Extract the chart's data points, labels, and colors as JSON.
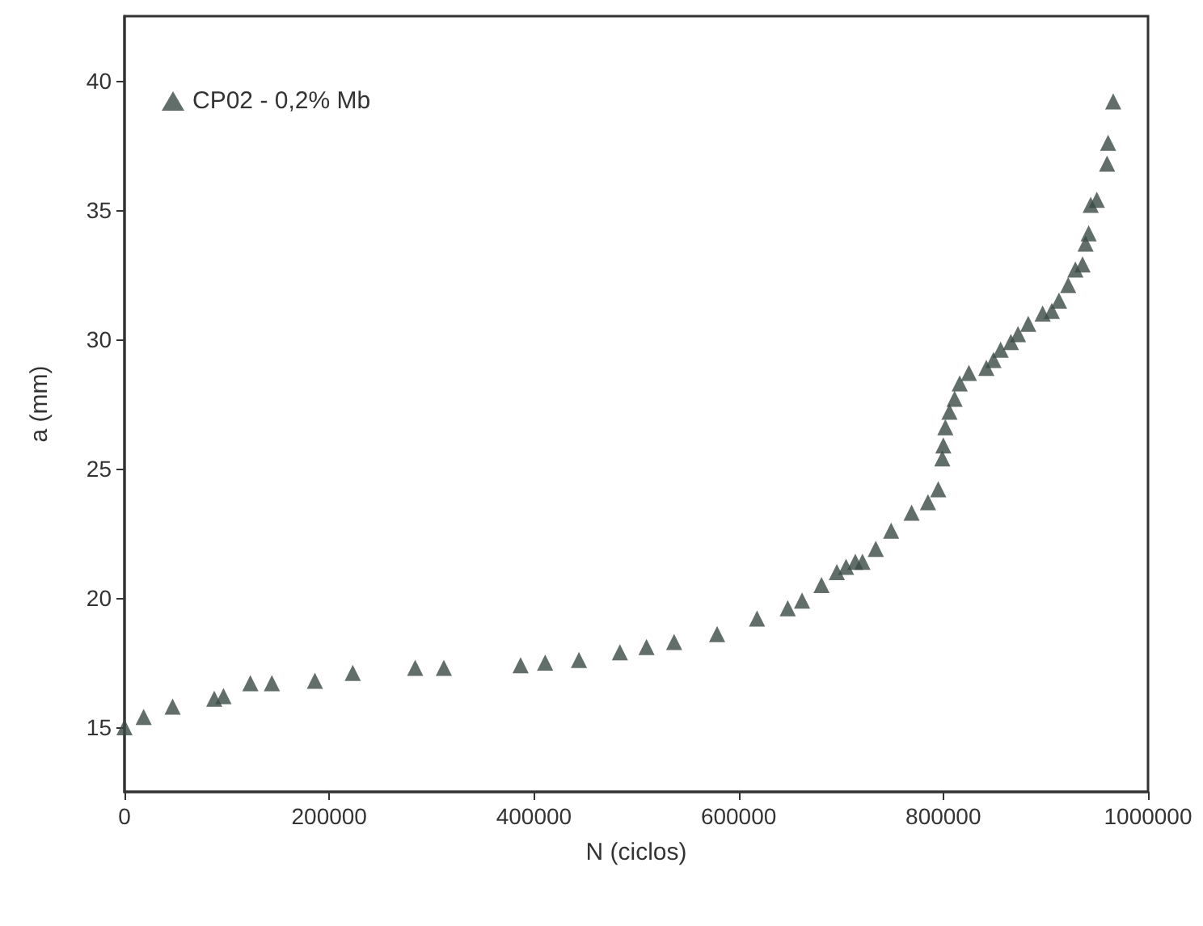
{
  "chart_data": {
    "type": "scatter",
    "xlabel": "N (ciclos)",
    "ylabel": "a (mm)",
    "xlim": [
      0,
      1000000
    ],
    "xticks": [
      0,
      200000,
      400000,
      600000,
      800000,
      1000000
    ],
    "ylim": [
      12.5,
      42.5
    ],
    "yticks": [
      15,
      20,
      25,
      30,
      35,
      40
    ],
    "grid": false,
    "legend": "top left",
    "marker": "triangle",
    "series": [
      {
        "name": "CP02 - 0,2% Mb",
        "color": "#3a4a45",
        "x": [
          0,
          18700,
          47000,
          87700,
          96700,
          123000,
          144000,
          186000,
          223000,
          284000,
          312000,
          387000,
          411000,
          444000,
          484000,
          510000,
          537000,
          579000,
          618000,
          648000,
          662000,
          681000,
          696000,
          705000,
          714000,
          721000,
          734000,
          749000,
          769000,
          785000,
          795000,
          799000,
          800000,
          802000,
          806000,
          811000,
          816000,
          825000,
          842000,
          849000,
          856000,
          866000,
          873000,
          883000,
          897000,
          906000,
          913000,
          922000,
          929000,
          936000,
          939000,
          942000,
          944000,
          950000,
          960000,
          961000,
          966000
        ],
        "values": [
          15.0,
          15.4,
          15.8,
          16.1,
          16.2,
          16.7,
          16.7,
          16.8,
          17.1,
          17.3,
          17.3,
          17.4,
          17.5,
          17.6,
          17.9,
          18.1,
          18.3,
          18.6,
          19.2,
          19.6,
          19.9,
          20.5,
          21.0,
          21.2,
          21.4,
          21.4,
          21.9,
          22.6,
          23.3,
          23.7,
          24.2,
          25.4,
          25.9,
          26.6,
          27.2,
          27.7,
          28.3,
          28.7,
          28.9,
          29.2,
          29.6,
          29.9,
          30.2,
          30.6,
          31.0,
          31.1,
          31.5,
          32.1,
          32.7,
          32.9,
          33.7,
          34.1,
          35.2,
          35.4,
          36.8,
          37.6,
          39.2
        ]
      }
    ]
  }
}
